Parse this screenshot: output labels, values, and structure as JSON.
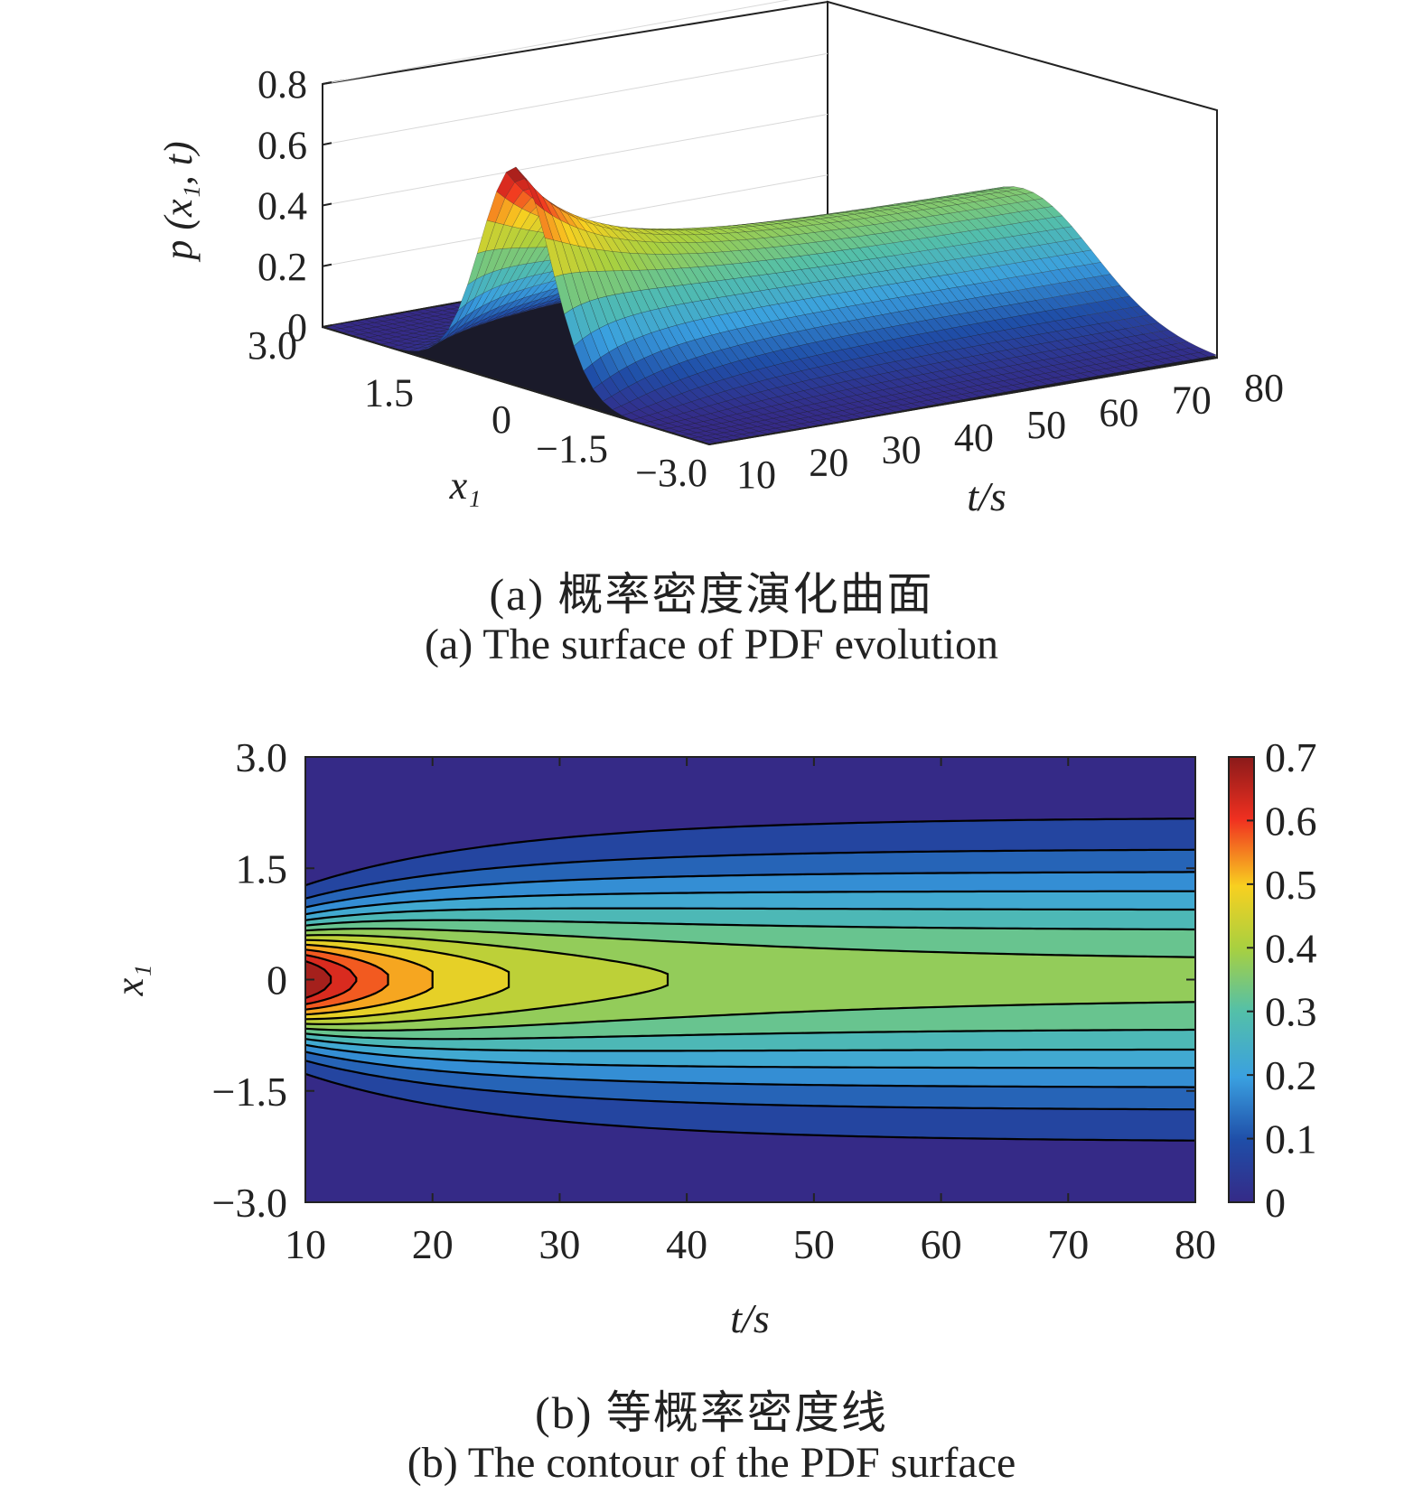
{
  "chart_data": [
    {
      "type": "surface",
      "panel": "a",
      "caption_cn": "(a) 概率密度演化曲面",
      "caption_en": "(a) The surface of PDF evolution",
      "zlabel": "p (x₁, t)",
      "xlabel": "x₁",
      "ylabel": "t/s",
      "x_ticks": [
        "3.0",
        "1.5",
        "0",
        "−1.5",
        "−3.0"
      ],
      "t_ticks": [
        "10",
        "20",
        "30",
        "40",
        "50",
        "60",
        "70",
        "80"
      ],
      "z_ticks": [
        "0",
        "0.2",
        "0.4",
        "0.6",
        "0.8"
      ],
      "xlim": [
        -3,
        3
      ],
      "tlim": [
        10,
        80
      ],
      "zlim": [
        0,
        0.8
      ],
      "peak": {
        "t": 10,
        "x": 0,
        "p": 0.72
      },
      "colormap": "jet-parula"
    },
    {
      "type": "contour",
      "panel": "b",
      "caption_cn": "(b) 等概率密度线",
      "caption_en": "(b) The contour of the PDF surface",
      "xlabel": "t/s",
      "ylabel": "x₁",
      "x_ticks": [
        "10",
        "20",
        "30",
        "40",
        "50",
        "60",
        "70",
        "80"
      ],
      "y_ticks": [
        "3.0",
        "1.5",
        "0",
        "−1.5",
        "−3.0"
      ],
      "colorbar_ticks": [
        "0",
        "0.1",
        "0.2",
        "0.3",
        "0.4",
        "0.5",
        "0.6",
        "0.7"
      ],
      "xlim": [
        10,
        80
      ],
      "ylim": [
        -3,
        3
      ],
      "clim": [
        0,
        0.7
      ],
      "levels": [
        0.05,
        0.1,
        0.15,
        0.2,
        0.25,
        0.3,
        0.35,
        0.4,
        0.45,
        0.5,
        0.55,
        0.6,
        0.65
      ]
    }
  ],
  "colors": {
    "axis": "#222222",
    "background": "#ffffff",
    "contour_line": "#000000"
  }
}
